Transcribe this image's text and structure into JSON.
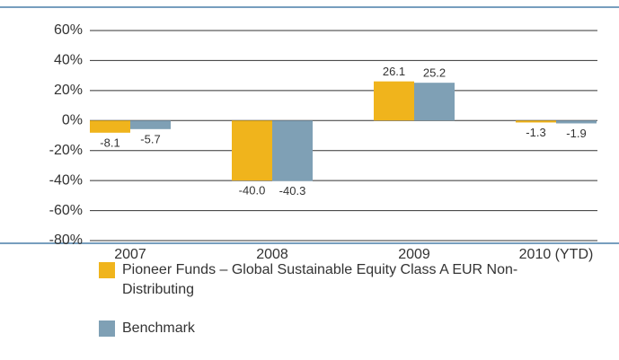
{
  "chart_data": {
    "type": "bar",
    "categories": [
      "2007",
      "2008",
      "2009",
      "2010 (YTD)"
    ],
    "series": [
      {
        "name": "Pioneer Funds – Global Sustainable Equity Class A EUR Non-Distributing",
        "color": "#f0b41c",
        "values": [
          -8.1,
          -40.0,
          26.1,
          -1.3
        ],
        "value_labels": [
          "-8.1",
          "-40.0",
          "26.1",
          "-1.3"
        ]
      },
      {
        "name": "Benchmark",
        "color": "#7fa0b5",
        "values": [
          -5.7,
          -40.3,
          25.2,
          -1.9
        ],
        "value_labels": [
          "-5.7",
          "-40.3",
          "25.2",
          "-1.9"
        ]
      }
    ],
    "ylim": [
      -80,
      60
    ],
    "yticks": [
      {
        "value": 60,
        "label": "60%"
      },
      {
        "value": 40,
        "label": "40%"
      },
      {
        "value": 20,
        "label": "20%"
      },
      {
        "value": 0,
        "label": "0%"
      },
      {
        "value": -20,
        "label": "-20%"
      },
      {
        "value": -40,
        "label": "-40%"
      },
      {
        "value": -60,
        "label": "-60%"
      },
      {
        "value": -80,
        "label": "-80%"
      }
    ],
    "grid": true
  }
}
